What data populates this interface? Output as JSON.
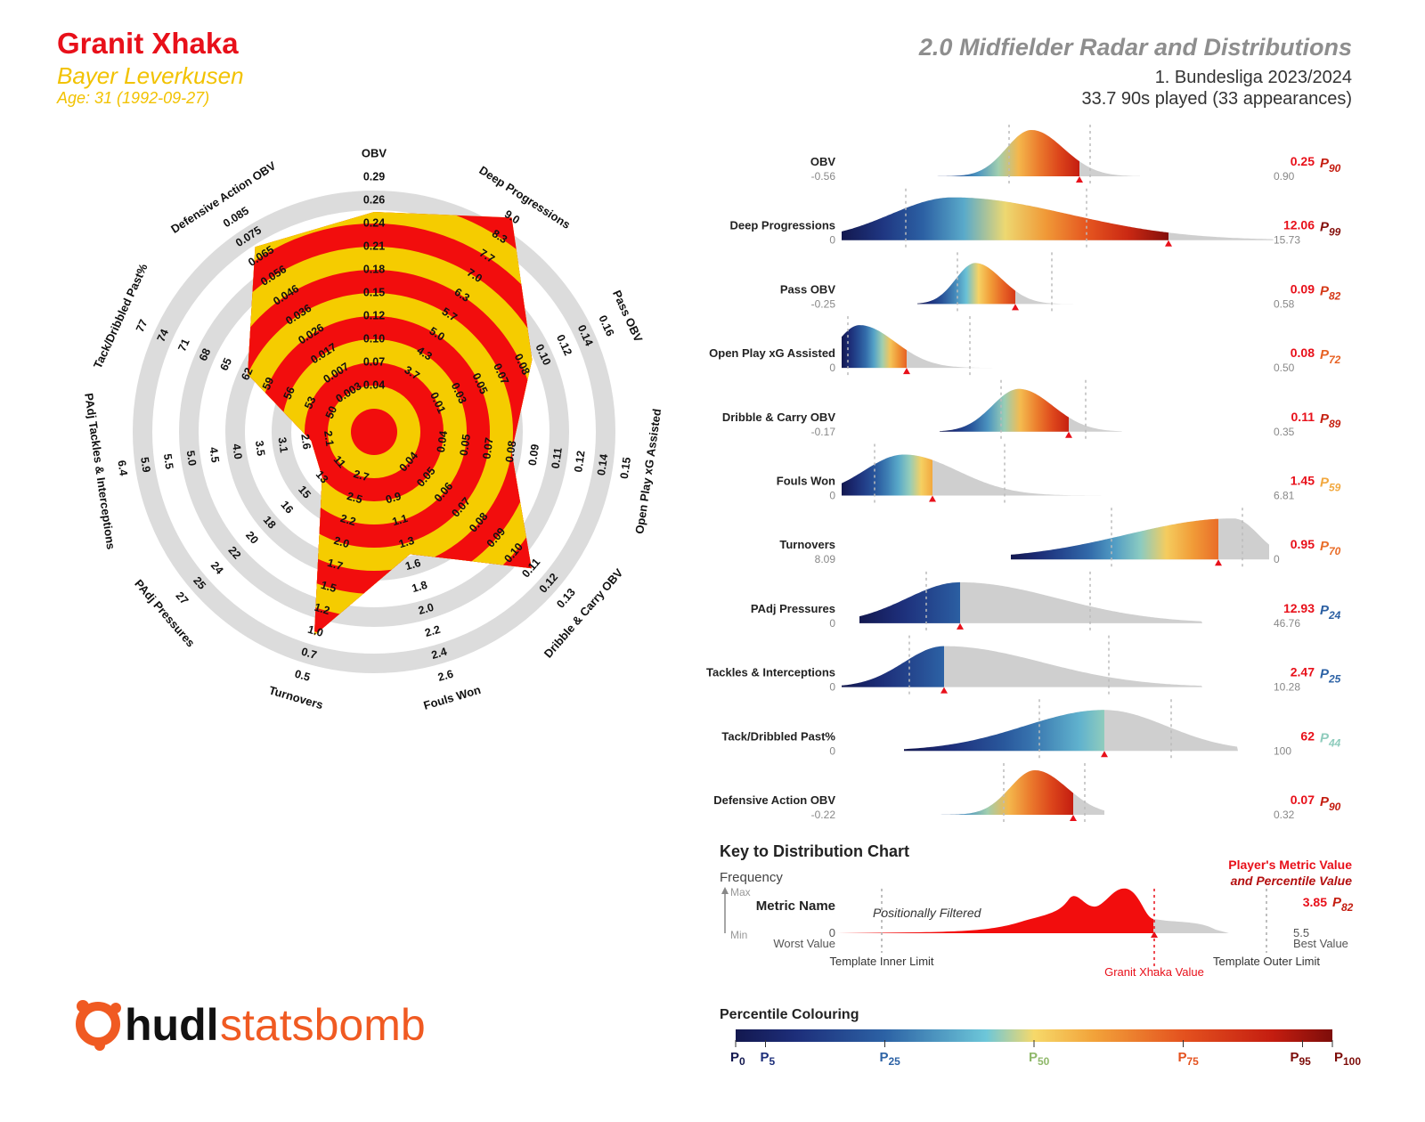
{
  "header": {
    "player_name": "Granit Xhaka",
    "team": "Bayer Leverkusen",
    "age": "Age: 31 (1992-09-27)",
    "title": "2.0 Midfielder Radar and Distributions",
    "league": "1. Bundesliga 2023/2024",
    "played": "33.7 90s played (33 appearances)"
  },
  "colors": {
    "name": "#e8101a",
    "team": "#f2c200",
    "radar_red": "#f20d0d",
    "radar_yellow": "#f5cc00",
    "ring_grey": "#dcdcdc",
    "dist_grey": "#cfcfcf",
    "marker_red": "#e8101a",
    "brand_orange": "#f05a22"
  },
  "chart_data": [
    {
      "type": "radar",
      "title": "",
      "axes": [
        {
          "name": "OBV",
          "ticks": [
            "0.04",
            "0.07",
            "0.10",
            "0.12",
            "0.15",
            "0.18",
            "0.21",
            "0.24",
            "0.26",
            "0.29"
          ],
          "value": 0.25
        },
        {
          "name": "Deep Progressions",
          "ticks": [
            "3.7",
            "4.3",
            "5.0",
            "5.7",
            "6.3",
            "7.0",
            "7.7",
            "8.3",
            "9.0"
          ],
          "value": 12.06
        },
        {
          "name": "Pass OBV",
          "ticks": [
            "0.01",
            "0.03",
            "0.05",
            "0.07",
            "0.08",
            "0.10",
            "0.12",
            "0.14",
            "0.16"
          ],
          "value": 0.09
        },
        {
          "name": "Open Play xG Assisted",
          "ticks": [
            "0.04",
            "0.05",
            "0.07",
            "0.08",
            "0.09",
            "0.11",
            "0.12",
            "0.14",
            "0.15"
          ],
          "value": 0.08
        },
        {
          "name": "Dribble & Carry OBV",
          "ticks": [
            "0.04",
            "0.05",
            "0.06",
            "0.07",
            "0.08",
            "0.09",
            "0.10",
            "0.11",
            "0.12",
            "0.13"
          ],
          "value": 0.11
        },
        {
          "name": "Fouls Won",
          "ticks": [
            "0.9",
            "1.1",
            "1.3",
            "1.6",
            "1.8",
            "2.0",
            "2.2",
            "2.4",
            "2.6"
          ],
          "value": 1.45
        },
        {
          "name": "Turnovers",
          "ticks": [
            "2.7",
            "2.5",
            "2.2",
            "2.0",
            "1.7",
            "1.5",
            "1.2",
            "1.0",
            "0.7",
            "0.5"
          ],
          "value": 0.95
        },
        {
          "name": "PAdj Pressures",
          "ticks": [
            "11",
            "13",
            "15",
            "16",
            "18",
            "20",
            "22",
            "24",
            "25",
            "27"
          ],
          "value": 12.93
        },
        {
          "name": "PAdj Tackles & Interceptions",
          "ticks": [
            "2.1",
            "2.6",
            "3.1",
            "3.5",
            "4.0",
            "4.5",
            "5.0",
            "5.5",
            "5.9",
            "6.4"
          ],
          "value": 2.47
        },
        {
          "name": "Tack/Dribbled Past%",
          "ticks": [
            "50",
            "53",
            "56",
            "59",
            "62",
            "65",
            "68",
            "71",
            "74",
            "77"
          ],
          "value": 62
        },
        {
          "name": "Defensive Action OBV",
          "ticks": [
            "0.003",
            "0.007",
            "0.017",
            "0.026",
            "0.036",
            "0.046",
            "0.056",
            "0.065",
            "0.075",
            "0.085"
          ],
          "value": 0.07
        }
      ]
    },
    {
      "type": "area",
      "title": "",
      "series": [
        {
          "name": "OBV",
          "min": "-0.56",
          "max": "0.90",
          "value": "0.25",
          "percentile": "90"
        },
        {
          "name": "Deep Progressions",
          "min": "0",
          "max": "15.73",
          "value": "12.06",
          "percentile": "99"
        },
        {
          "name": "Pass OBV",
          "min": "-0.25",
          "max": "0.58",
          "value": "0.09",
          "percentile": "82"
        },
        {
          "name": "Open Play xG Assisted",
          "min": "0",
          "max": "0.50",
          "value": "0.08",
          "percentile": "72"
        },
        {
          "name": "Dribble & Carry OBV",
          "min": "-0.17",
          "max": "0.35",
          "value": "0.11",
          "percentile": "89"
        },
        {
          "name": "Fouls Won",
          "min": "0",
          "max": "6.81",
          "value": "1.45",
          "percentile": "59"
        },
        {
          "name": "Turnovers",
          "min": "8.09",
          "max": "0",
          "value": "0.95",
          "percentile": "70"
        },
        {
          "name": "PAdj Pressures",
          "min": "0",
          "max": "46.76",
          "value": "12.93",
          "percentile": "24"
        },
        {
          "name": "PAdj Tackles & Interceptions",
          "min": "0",
          "max": "10.28",
          "value": "2.47",
          "percentile": "25"
        },
        {
          "name": "Tack/Dribbled Past%",
          "min": "0",
          "max": "100",
          "value": "62",
          "percentile": "44"
        },
        {
          "name": "Defensive Action OBV",
          "min": "-0.22",
          "max": "0.32",
          "value": "0.07",
          "percentile": "90"
        }
      ]
    }
  ],
  "key": {
    "title": "Key to Distribution Chart",
    "frequency": "Frequency",
    "max": "Max",
    "min": "Min",
    "metric_name": "Metric Name",
    "zero": "0",
    "worst": "Worst Value",
    "filtered": "Positionally Filtered",
    "player_value_1": "Player's Metric Value",
    "player_value_2": "and Percentile Value",
    "example_value": "3.85",
    "example_pct": "82",
    "best_num": "5.5",
    "best": "Best Value",
    "inner": "Template Inner Limit",
    "outer": "Template Outer Limit",
    "player_marker": "Granit Xhaka Value"
  },
  "percentile_colouring": {
    "title": "Percentile Colouring",
    "ticks": [
      "0",
      "5",
      "25",
      "50",
      "75",
      "95",
      "100"
    ]
  },
  "brand": {
    "part1": "hudl",
    "part2": "statsbomb"
  }
}
